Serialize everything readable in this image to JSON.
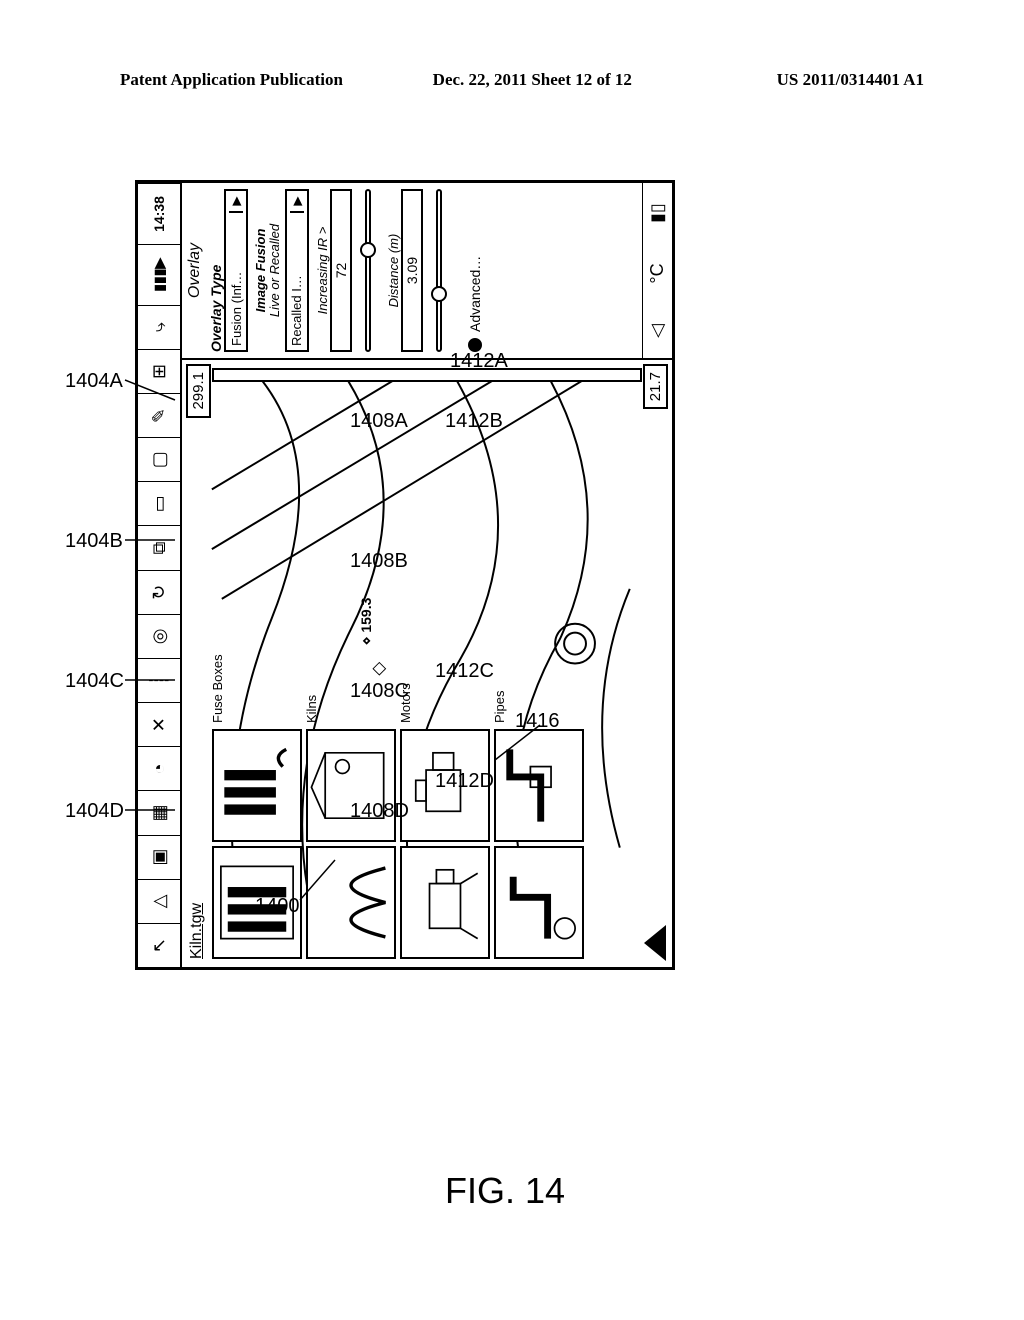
{
  "header": {
    "left": "Patent Application Publication",
    "center": "Dec. 22, 2011  Sheet 12 of 12",
    "right": "US 2011/0314401 A1"
  },
  "figure": {
    "caption": "FIG. 14",
    "main_ref": "1400"
  },
  "toolbar_time": "14:38",
  "toolbar_icons": [
    "↖",
    "△",
    "▣",
    "▦",
    "◔",
    "✕",
    "┊",
    "◎",
    "↻",
    "⧉",
    "▭",
    "▢",
    "✎",
    "⊞",
    "⤷"
  ],
  "tree_file": "Kiln.tgw",
  "temp_high": "299.1",
  "temp_low": "21.7",
  "cursor_temp": "⋄ 159.3",
  "categories": [
    {
      "label": "Fuse Boxes",
      "thumb_ref": "1404A",
      "link_ref": "1408A",
      "row_ref": "1412A"
    },
    {
      "label": "Kilns",
      "thumb_ref": "1404B",
      "link_ref": "1408B",
      "row_ref": "1412B"
    },
    {
      "label": "Motors",
      "thumb_ref": "1404C",
      "link_ref": "1408C",
      "row_ref": "1412C"
    },
    {
      "label": "Pipes",
      "thumb_ref": "1404D",
      "link_ref": "1408D",
      "row_ref": "1412D"
    }
  ],
  "detail_ref": "1416",
  "side": {
    "title": "Overlay",
    "type_label": "Overlay Type",
    "combo1": "Fusion (Inf…",
    "note1a": "Image Fusion",
    "note1b": "Live or Recalled",
    "combo2": "Recalled I…",
    "inc_label": "Increasing IR >",
    "inc_val": "72",
    "knob1_pct": 58,
    "dist_label": "Distance (m)",
    "dist_val": "3.09",
    "knob2_pct": 30,
    "advanced": "Advanced…",
    "unit": "°C"
  },
  "colors": {
    "stroke": "#000000",
    "bg": "#ffffff"
  }
}
